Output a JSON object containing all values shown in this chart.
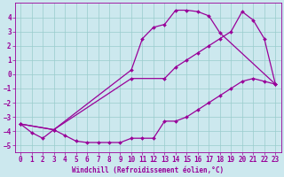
{
  "bg_color": "#cce8ee",
  "line_color": "#990099",
  "grid_color": "#99cccc",
  "xlabel": "Windchill (Refroidissement éolien,°C)",
  "xlim": [
    -0.5,
    23.5
  ],
  "ylim": [
    -5.5,
    5.0
  ],
  "yticks": [
    -5,
    -4,
    -3,
    -2,
    -1,
    0,
    1,
    2,
    3,
    4
  ],
  "xticks": [
    0,
    1,
    2,
    3,
    4,
    5,
    6,
    7,
    8,
    9,
    10,
    11,
    12,
    13,
    14,
    15,
    16,
    17,
    18,
    19,
    20,
    21,
    22,
    23
  ],
  "curves": [
    {
      "x": [
        0,
        1,
        2,
        3,
        4,
        5,
        6,
        7,
        8,
        9,
        10,
        11,
        12,
        13,
        14,
        15,
        16,
        17,
        18,
        19,
        20,
        21,
        22,
        23
      ],
      "y": [
        -3.5,
        -4.1,
        -4.5,
        -3.9,
        -4.3,
        -4.7,
        -4.8,
        -4.8,
        -4.8,
        -4.8,
        -4.5,
        -4.5,
        -4.5,
        -3.3,
        -3.3,
        -3.0,
        -2.5,
        -2.0,
        -1.5,
        -1.0,
        -0.5,
        -0.3,
        -0.5,
        -0.7
      ]
    },
    {
      "x": [
        0,
        3,
        10,
        13,
        14,
        15,
        16,
        17,
        18,
        19,
        20,
        21,
        22,
        23
      ],
      "y": [
        -3.5,
        -3.9,
        -0.3,
        -0.3,
        0.5,
        1.0,
        1.5,
        2.0,
        2.5,
        3.0,
        4.4,
        3.8,
        2.5,
        -0.7
      ]
    },
    {
      "x": [
        0,
        3,
        10,
        11,
        12,
        13,
        14,
        15,
        16,
        17,
        18,
        23
      ],
      "y": [
        -3.5,
        -3.9,
        0.3,
        2.5,
        3.3,
        3.5,
        4.5,
        4.5,
        4.4,
        4.1,
        2.9,
        -0.7
      ]
    }
  ]
}
